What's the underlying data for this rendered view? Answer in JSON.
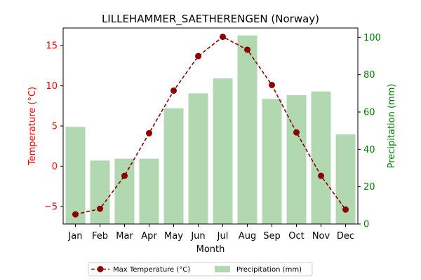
{
  "chart_data": {
    "type": "bar+line",
    "title": "LILLEHAMMER_SAETHERENGEN (Norway)",
    "xlabel": "Month",
    "categories": [
      "Jan",
      "Feb",
      "Mar",
      "Apr",
      "May",
      "Jun",
      "Jul",
      "Aug",
      "Sep",
      "Oct",
      "Nov",
      "Dec"
    ],
    "left_axis": {
      "label": "Temperature (°C)",
      "color": "#ff0000",
      "ylim": [
        -7.2,
        17.2
      ],
      "ticks": [
        -5,
        0,
        5,
        10,
        15
      ]
    },
    "right_axis": {
      "label": "Precipitation (mm)",
      "color": "#008000",
      "ylim": [
        0,
        105
      ],
      "ticks": [
        0,
        20,
        40,
        60,
        80,
        100
      ]
    },
    "series": [
      {
        "name": "Max Temperature (°C)",
        "kind": "line",
        "axis": "left",
        "color": "#8b0000",
        "values": [
          -6.0,
          -5.3,
          -1.2,
          4.1,
          9.4,
          13.7,
          16.1,
          14.5,
          10.1,
          4.2,
          -1.2,
          -5.4
        ]
      },
      {
        "name": "Precipitation (mm)",
        "kind": "bar",
        "axis": "right",
        "color": "#b1d8b1",
        "values": [
          52,
          34,
          35,
          35,
          62,
          70,
          78,
          101,
          67,
          69,
          71,
          48
        ]
      }
    ],
    "legend": {
      "position": "bottom-center",
      "entries": [
        "Max Temperature (°C)",
        "Precipitation (mm)"
      ]
    }
  }
}
